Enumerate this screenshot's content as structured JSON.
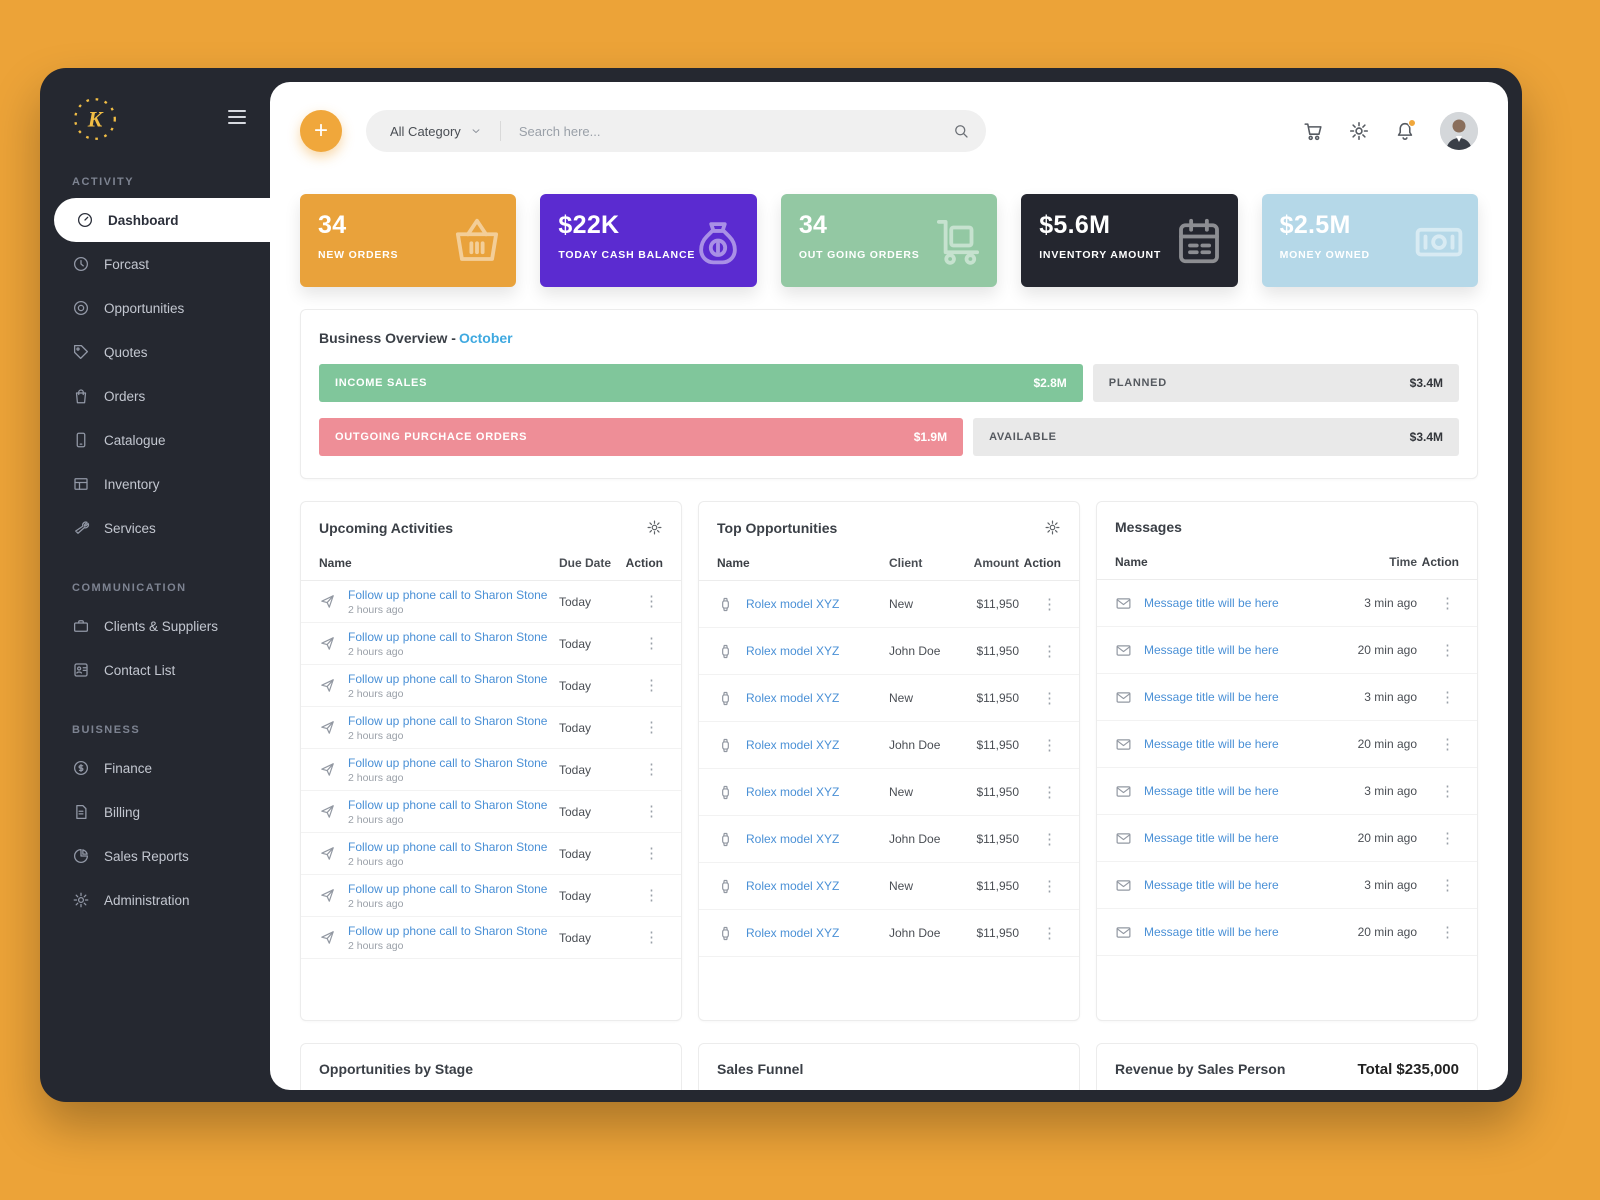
{
  "sidebar": {
    "logo_letter": "K",
    "sections": [
      {
        "label": "ACTIVITY",
        "items": [
          {
            "label": "Dashboard",
            "icon": "dashboard",
            "active": true
          },
          {
            "label": "Forcast",
            "icon": "forecast"
          },
          {
            "label": "Opportunities",
            "icon": "opportunities"
          },
          {
            "label": "Quotes",
            "icon": "quotes"
          },
          {
            "label": "Orders",
            "icon": "orders"
          },
          {
            "label": "Catalogue",
            "icon": "catalogue"
          },
          {
            "label": "Inventory",
            "icon": "inventory"
          },
          {
            "label": "Services",
            "icon": "services"
          }
        ]
      },
      {
        "label": "COMMUNICATION",
        "items": [
          {
            "label": "Clients & Suppliers",
            "icon": "clients"
          },
          {
            "label": "Contact List",
            "icon": "contacts"
          }
        ]
      },
      {
        "label": "BUISNESS",
        "items": [
          {
            "label": "Finance",
            "icon": "finance"
          },
          {
            "label": "Billing",
            "icon": "billing"
          },
          {
            "label": "Sales Reports",
            "icon": "sales-reports"
          },
          {
            "label": "Administration",
            "icon": "administration"
          }
        ]
      }
    ]
  },
  "topbar": {
    "category": "All Category",
    "search_placeholder": "Search here..."
  },
  "kpis": [
    {
      "value": "34",
      "label": "NEW ORDERS",
      "color": "#E9A23B",
      "icon": "basket"
    },
    {
      "value": "$22K",
      "label": "TODAY CASH BALANCE",
      "color": "#5B2BD0",
      "icon": "money-bag"
    },
    {
      "value": "34",
      "label": "OUT GOING ORDERS",
      "color": "#93C8A3",
      "icon": "trolley"
    },
    {
      "value": "$5.6M",
      "label": "INVENTORY AMOUNT",
      "color": "#24262F",
      "icon": "calendar"
    },
    {
      "value": "$2.5M",
      "label": "MONEY OWNED",
      "color": "#B5D8E8",
      "icon": "banknote"
    }
  ],
  "overview": {
    "title": "Business Overview -",
    "accent": "October",
    "bars": [
      {
        "label": "INCOME SALES",
        "value": "$2.8M",
        "color": "#80C69B",
        "pct": 67,
        "rest_label": "PLANNED",
        "rest_value": "$3.4M"
      },
      {
        "label": "OUTGOING PURCHACE ORDERS",
        "value": "$1.9M",
        "color": "#EE8E97",
        "pct": 56.5,
        "rest_label": "AVAILABLE",
        "rest_value": "$3.4M"
      }
    ]
  },
  "activities": {
    "title": "Upcoming Activities",
    "columns": [
      "Name",
      "Due Date",
      "Action"
    ],
    "rows": [
      {
        "name": "Follow up phone call to Sharon Stone",
        "sub": "2 hours ago",
        "due": "Today"
      },
      {
        "name": "Follow up phone call to Sharon Stone",
        "sub": "2 hours ago",
        "due": "Today"
      },
      {
        "name": "Follow up phone call to Sharon Stone",
        "sub": "2 hours ago",
        "due": "Today"
      },
      {
        "name": "Follow up phone call to Sharon Stone",
        "sub": "2 hours ago",
        "due": "Today"
      },
      {
        "name": "Follow up phone call to Sharon Stone",
        "sub": "2 hours ago",
        "due": "Today"
      },
      {
        "name": "Follow up phone call to Sharon Stone",
        "sub": "2 hours ago",
        "due": "Today"
      },
      {
        "name": "Follow up phone call to Sharon Stone",
        "sub": "2 hours ago",
        "due": "Today"
      },
      {
        "name": "Follow up phone call to Sharon Stone",
        "sub": "2 hours ago",
        "due": "Today"
      },
      {
        "name": "Follow up phone call to Sharon Stone",
        "sub": "2 hours ago",
        "due": "Today"
      }
    ]
  },
  "opportunities": {
    "title": "Top Opportunities",
    "columns": [
      "Name",
      "Client",
      "Amount",
      "Action"
    ],
    "rows": [
      {
        "name": "Rolex model XYZ",
        "client": "New",
        "amount": "$11,950"
      },
      {
        "name": "Rolex model XYZ",
        "client": "John Doe",
        "amount": "$11,950"
      },
      {
        "name": "Rolex model XYZ",
        "client": "New",
        "amount": "$11,950"
      },
      {
        "name": "Rolex model XYZ",
        "client": "John Doe",
        "amount": "$11,950"
      },
      {
        "name": "Rolex model XYZ",
        "client": "New",
        "amount": "$11,950"
      },
      {
        "name": "Rolex model XYZ",
        "client": "John Doe",
        "amount": "$11,950"
      },
      {
        "name": "Rolex model XYZ",
        "client": "New",
        "amount": "$11,950"
      },
      {
        "name": "Rolex model XYZ",
        "client": "John Doe",
        "amount": "$11,950"
      }
    ]
  },
  "messages": {
    "title": "Messages",
    "columns": [
      "Name",
      "Time",
      "Action"
    ],
    "rows": [
      {
        "name": "Message title will be here",
        "time": "3 min ago"
      },
      {
        "name": "Message title will be here",
        "time": "20 min ago"
      },
      {
        "name": "Message title will be here",
        "time": "3 min ago"
      },
      {
        "name": "Message title will be here",
        "time": "20 min ago"
      },
      {
        "name": "Message title will be here",
        "time": "3 min ago"
      },
      {
        "name": "Message title will be here",
        "time": "20 min ago"
      },
      {
        "name": "Message title will be here",
        "time": "3 min ago"
      },
      {
        "name": "Message title will be here",
        "time": "20 min ago"
      }
    ]
  },
  "bottom": {
    "panels": [
      {
        "title": "Opportunities by Stage"
      },
      {
        "title": "Sales Funnel"
      },
      {
        "title": "Revenue by Sales Person",
        "total": "Total $235,000"
      }
    ]
  }
}
